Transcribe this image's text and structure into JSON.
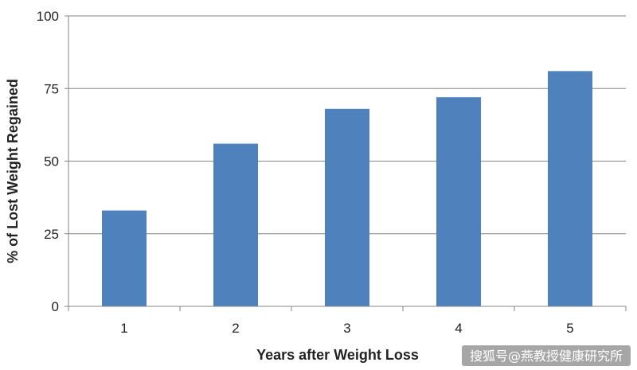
{
  "chart_data": {
    "type": "bar",
    "categories": [
      "1",
      "2",
      "3",
      "4",
      "5"
    ],
    "values": [
      33,
      56,
      68,
      72,
      81
    ],
    "title": "",
    "xlabel": "Years after Weight Loss",
    "ylabel": "% of Lost Weight Regained",
    "ylim": [
      0,
      100
    ],
    "yticks": [
      0,
      25,
      50,
      75,
      100
    ],
    "grid": true,
    "bar_color": "#4f81bd"
  },
  "watermark": "搜狐号@燕教授健康研究所"
}
